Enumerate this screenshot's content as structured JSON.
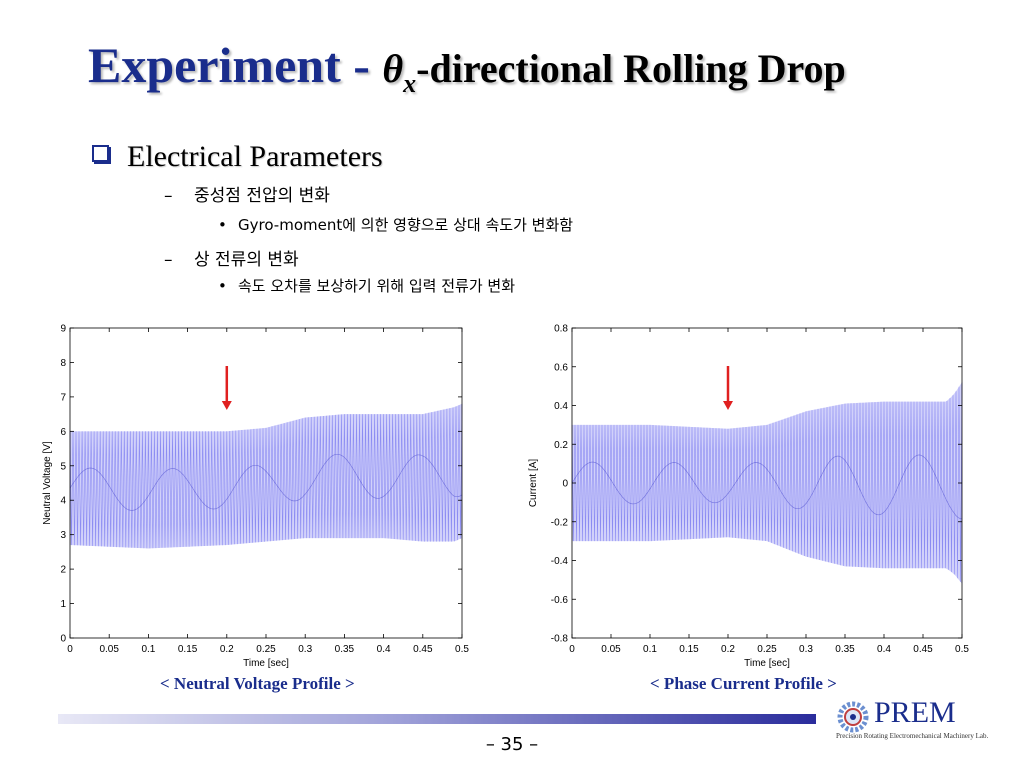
{
  "slide": {
    "title_main": "Experiment - ",
    "title_theta": "θ",
    "title_sub": "x",
    "title_rest": "-directional Rolling Drop",
    "bullet_l1": "Electrical Parameters",
    "items": [
      {
        "level": 2,
        "text": "중성점 전압의 변화"
      },
      {
        "level": 3,
        "text": "Gyro-moment에 의한 영향으로 상대 속도가 변화함"
      },
      {
        "level": 2,
        "text": "상 전류의 변화"
      },
      {
        "level": 3,
        "text": "속도 오차를 보상하기 위해 입력 전류가 변화"
      }
    ],
    "caption_left": "< Neutral Voltage Profile >",
    "caption_right": "< Phase Current Profile >",
    "page_number": "– 35 –",
    "logo_name": "PREM",
    "logo_tagline": "Precision Rotating Electromechanical Machinery Lab."
  },
  "colors": {
    "title_blue": "#1a2d8c",
    "signal": "#7b7bf0",
    "marker_arrow": "#e02020"
  },
  "chart_data": [
    {
      "type": "line",
      "xlabel": "Time [sec]",
      "ylabel": "Neutral Voltage [V]",
      "xlim": [
        0,
        0.5
      ],
      "ylim": [
        0,
        9
      ],
      "xticks": [
        "0",
        "0.05",
        "0.1",
        "0.15",
        "0.2",
        "0.25",
        "0.3",
        "0.35",
        "0.4",
        "0.45",
        "0.5"
      ],
      "yticks": [
        "0",
        "1",
        "2",
        "3",
        "4",
        "5",
        "6",
        "7",
        "8",
        "9"
      ],
      "envelope": {
        "t": [
          0,
          0.1,
          0.2,
          0.25,
          0.3,
          0.35,
          0.4,
          0.45,
          0.49,
          0.5
        ],
        "upper": [
          6.0,
          6.0,
          6.0,
          6.1,
          6.4,
          6.5,
          6.5,
          6.5,
          6.7,
          6.8
        ],
        "lower": [
          2.7,
          2.6,
          2.7,
          2.8,
          2.9,
          2.9,
          2.9,
          2.8,
          2.8,
          2.9
        ]
      },
      "marker_arrow_x": 0.2
    },
    {
      "type": "line",
      "xlabel": "Time [sec]",
      "ylabel": "Current [A]",
      "xlim": [
        0,
        0.5
      ],
      "ylim": [
        -0.8,
        0.8
      ],
      "xticks": [
        "0",
        "0.05",
        "0.1",
        "0.15",
        "0.2",
        "0.25",
        "0.3",
        "0.35",
        "0.4",
        "0.45",
        "0.5"
      ],
      "yticks": [
        "-0.8",
        "-0.6",
        "-0.4",
        "-0.2",
        "0",
        "0.2",
        "0.4",
        "0.6",
        "0.8"
      ],
      "envelope": {
        "t": [
          0,
          0.1,
          0.2,
          0.25,
          0.3,
          0.35,
          0.4,
          0.45,
          0.48,
          0.49,
          0.5
        ],
        "upper": [
          0.3,
          0.3,
          0.28,
          0.3,
          0.37,
          0.41,
          0.42,
          0.42,
          0.42,
          0.46,
          0.52
        ],
        "lower": [
          -0.3,
          -0.3,
          -0.28,
          -0.3,
          -0.38,
          -0.43,
          -0.44,
          -0.44,
          -0.44,
          -0.47,
          -0.52
        ]
      },
      "marker_arrow_x": 0.2
    }
  ]
}
